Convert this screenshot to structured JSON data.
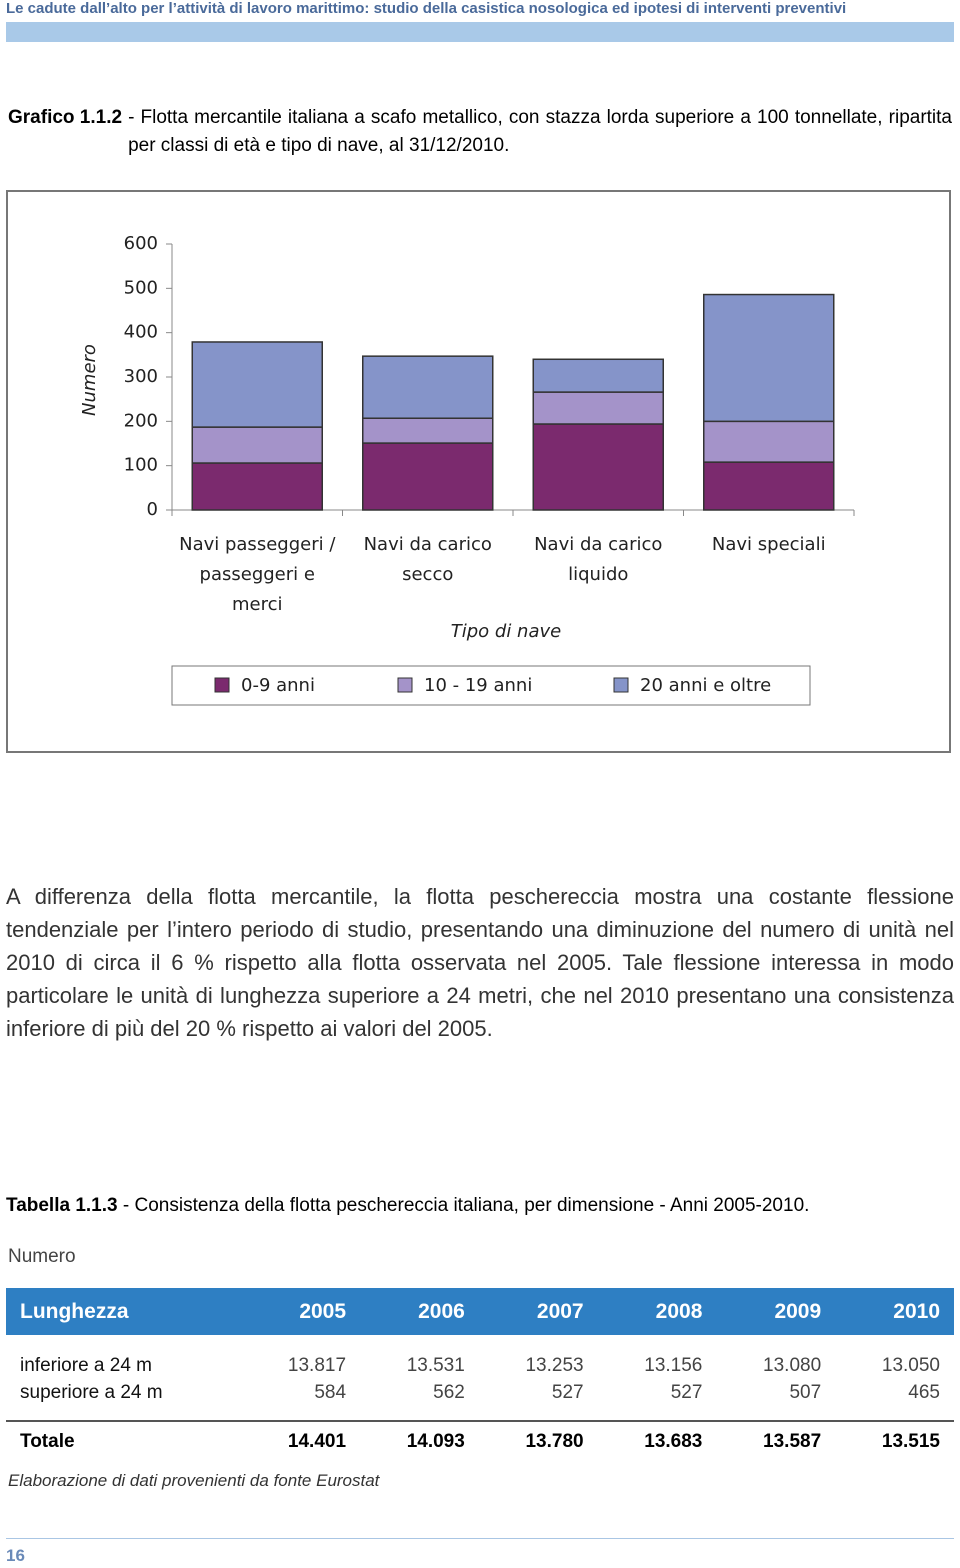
{
  "header": {
    "running_title": "Le cadute dall’alto per l’attività di lavoro marittimo: studio della casistica nosologica ed ipotesi di interventi preventivi"
  },
  "caption": {
    "label": "Grafico 1.1.2",
    "text": "- Flotta mercantile italiana a scafo metallico, con stazza lorda superiore a 100 tonnellate, ripartita per classi di età e tipo di nave, al 31/12/2010."
  },
  "chart_data": {
    "type": "stacked-bar",
    "xlabel": "Tipo di nave",
    "ylabel": "Numero",
    "categories": [
      "Navi passeggeri / passeggeri e merci",
      "Navi da carico secco",
      "Navi da carico liquido",
      "Navi speciali"
    ],
    "series": [
      {
        "name": "0-9 anni",
        "color": "#7b2a6e",
        "values": [
          106,
          151,
          194,
          108
        ]
      },
      {
        "name": "10 - 19 anni",
        "color": "#a493c9",
        "values": [
          81,
          56,
          72,
          92
        ]
      },
      {
        "name": "20 anni e oltre",
        "color": "#8594c9",
        "values": [
          192,
          140,
          74,
          286
        ]
      }
    ],
    "ylim": [
      0,
      600
    ],
    "yticks": [
      0,
      100,
      200,
      300,
      400,
      500,
      600
    ],
    "grid": false,
    "legend": "bottom"
  },
  "paragraph": "A differenza della flotta mercantile, la flotta peschereccia mostra una costante flessione tendenziale per l’intero periodo di studio, presentando una diminuzione del numero di unità nel 2010 di circa il 6 % rispetto alla flotta osservata nel 2005. Tale flessione interessa in modo particolare le unità di lunghezza superiore a 24 metri, che nel 2010 presentano una consistenza inferiore di più del 20 % rispetto ai valori del 2005.",
  "table": {
    "label": "Tabella 1.1.3",
    "title": "- Consistenza della flotta peschereccia italiana, per dimensione - Anni 2005-2010.",
    "unit": "Numero",
    "columns": [
      "Lunghezza",
      "2005",
      "2006",
      "2007",
      "2008",
      "2009",
      "2010"
    ],
    "rows": [
      [
        "inferiore a 24 m",
        "13.817",
        "13.531",
        "13.253",
        "13.156",
        "13.080",
        "13.050"
      ],
      [
        "superiore a 24 m",
        "584",
        "562",
        "527",
        "527",
        "507",
        "465"
      ]
    ],
    "total": [
      "Totale",
      "14.401",
      "14.093",
      "13.780",
      "13.683",
      "13.587",
      "13.515"
    ]
  },
  "source": "Elaborazione di dati provenienti da fonte Eurostat",
  "page_number": "16"
}
